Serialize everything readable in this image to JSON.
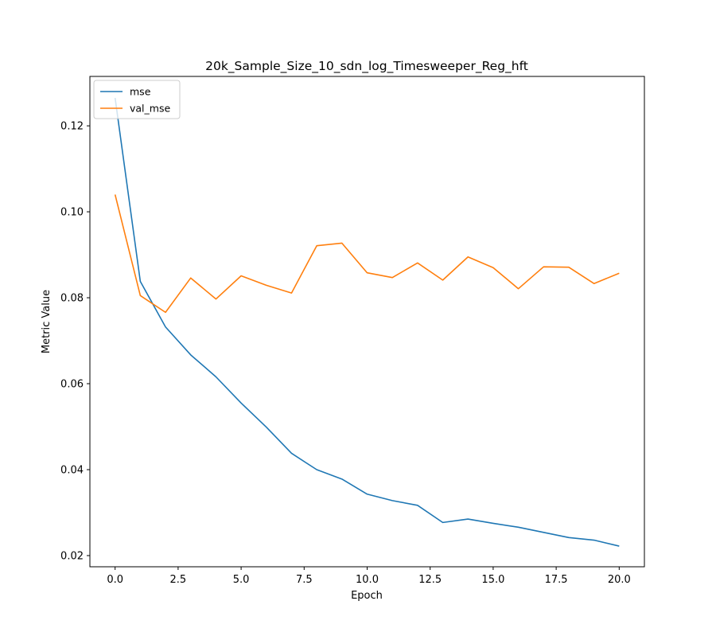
{
  "chart_data": {
    "type": "line",
    "title": "20k_Sample_Size_10_sdn_log_Timesweeper_Reg_hft",
    "xlabel": "Epoch",
    "ylabel": "Metric Value",
    "x": [
      0,
      1,
      2,
      3,
      4,
      5,
      6,
      7,
      8,
      9,
      10,
      11,
      12,
      13,
      14,
      15,
      16,
      17,
      18,
      19,
      20
    ],
    "xlim": [
      -1.0,
      21.0
    ],
    "ylim": [
      0.0174,
      0.1315
    ],
    "xticks": [
      0.0,
      2.5,
      5.0,
      7.5,
      10.0,
      12.5,
      15.0,
      17.5,
      20.0
    ],
    "xtick_labels": [
      "0.0",
      "2.5",
      "5.0",
      "7.5",
      "10.0",
      "12.5",
      "15.0",
      "17.5",
      "20.0"
    ],
    "yticks": [
      0.02,
      0.04,
      0.06,
      0.08,
      0.1,
      0.12
    ],
    "ytick_labels": [
      "0.02",
      "0.04",
      "0.06",
      "0.08",
      "0.10",
      "0.12"
    ],
    "grid": false,
    "legend_position": "top-left",
    "series": [
      {
        "name": "mse",
        "color": "#1f77b4",
        "values": [
          0.1265,
          0.0838,
          0.0732,
          0.0667,
          0.0616,
          0.0555,
          0.0499,
          0.0438,
          0.04,
          0.0378,
          0.0343,
          0.0328,
          0.0317,
          0.0277,
          0.0285,
          0.0275,
          0.0266,
          0.0254,
          0.0242,
          0.0236,
          0.0222
        ]
      },
      {
        "name": "val_mse",
        "color": "#ff7f0e",
        "values": [
          0.104,
          0.0805,
          0.0766,
          0.0846,
          0.0797,
          0.0851,
          0.0829,
          0.0811,
          0.0921,
          0.0927,
          0.0858,
          0.0847,
          0.0881,
          0.0841,
          0.0895,
          0.087,
          0.0821,
          0.0872,
          0.0871,
          0.0833,
          0.0857
        ]
      }
    ]
  }
}
